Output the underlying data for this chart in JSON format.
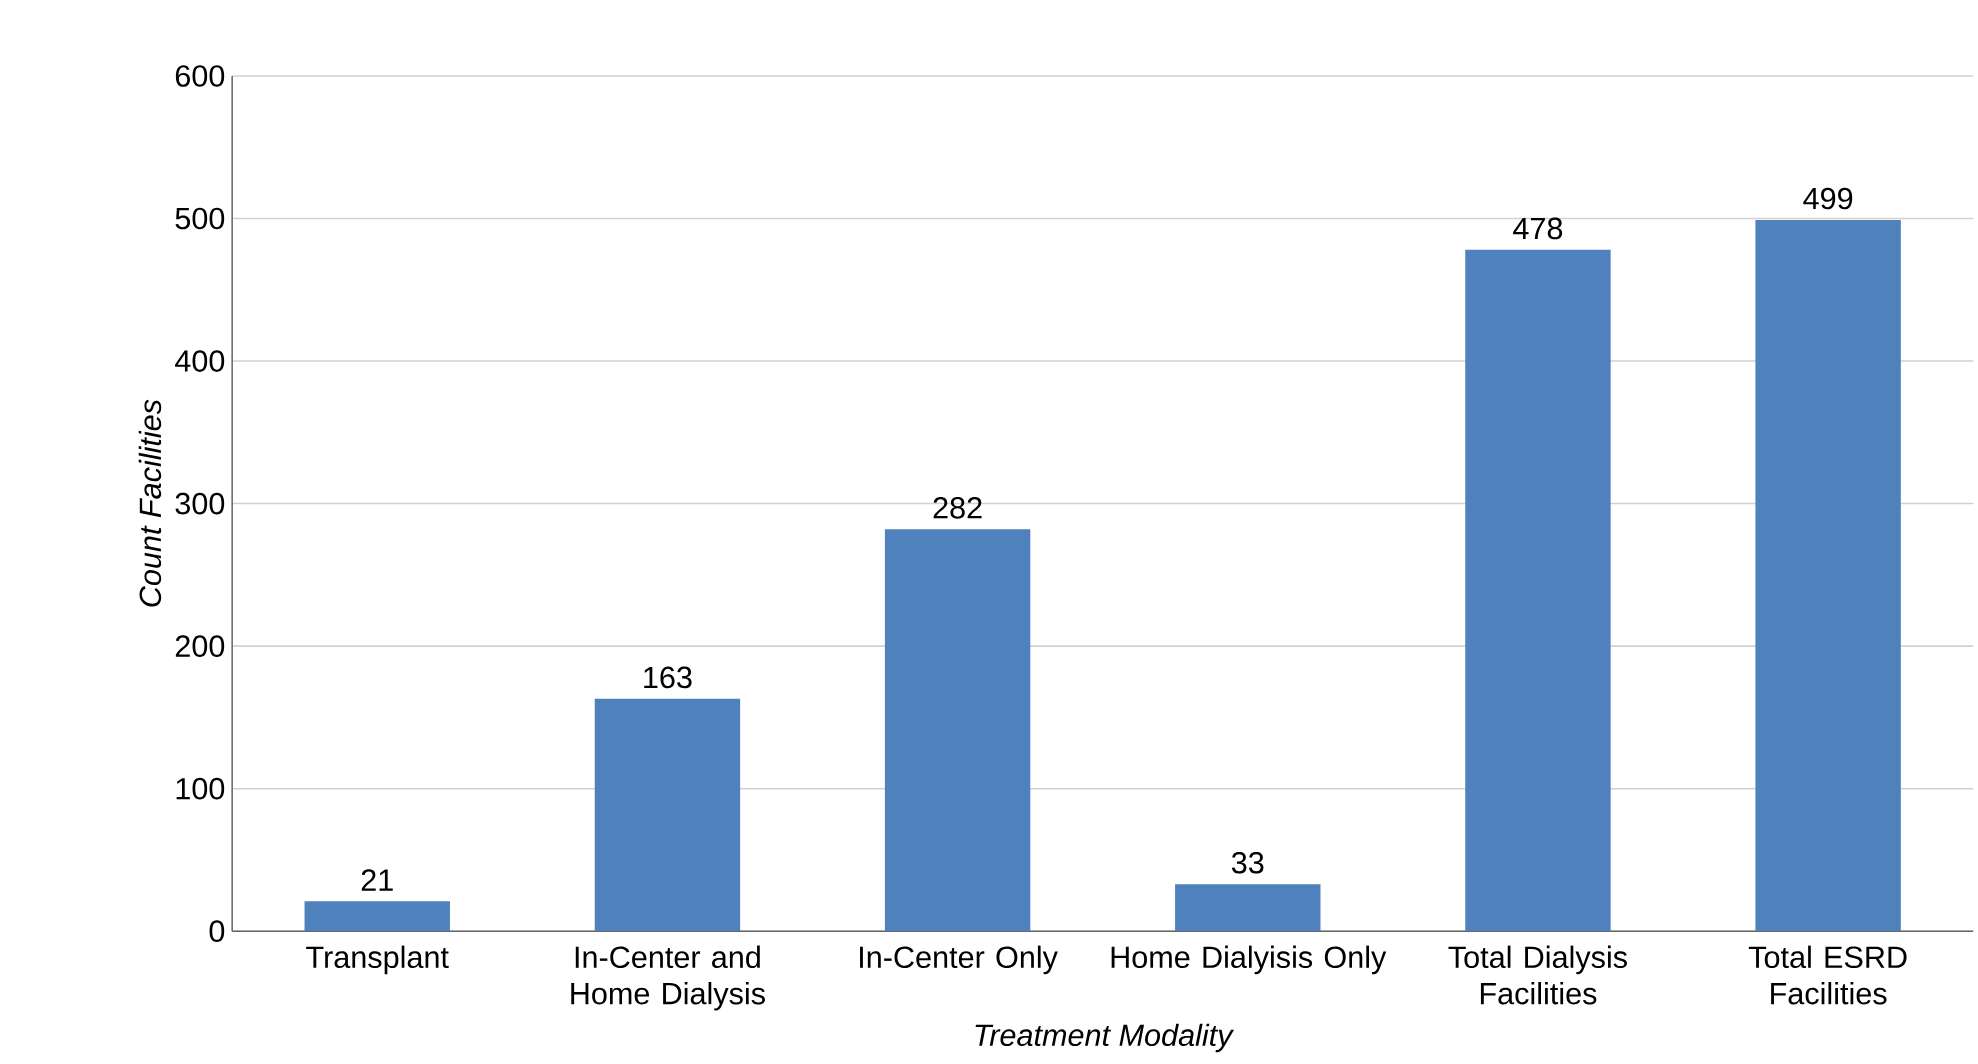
{
  "chart_data": {
    "type": "bar",
    "xlabel": "Treatment Modality",
    "ylabel": "Count Facilities",
    "categories": [
      "Transplant",
      "In-Center and Home Dialysis",
      "In-Center Only",
      "Home Dialyisis Only",
      "Total Dialysis Facilities",
      "Total ESRD Facilities"
    ],
    "values": [
      21,
      163,
      282,
      33,
      478,
      499
    ],
    "color": "#4f81bd",
    "ylim": [
      0,
      600
    ],
    "yticks": [
      0,
      100,
      200,
      300,
      400,
      500,
      600
    ],
    "grid": "y",
    "data_labels": true
  }
}
